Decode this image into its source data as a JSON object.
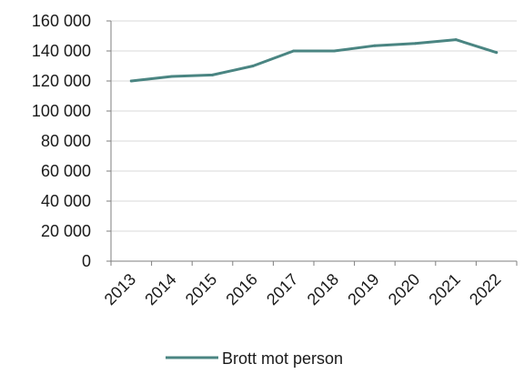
{
  "chart_data": {
    "type": "line",
    "title": "",
    "xlabel": "",
    "ylabel": "",
    "categories": [
      "2013",
      "2014",
      "2015",
      "2016",
      "2017",
      "2018",
      "2019",
      "2020",
      "2021",
      "2022"
    ],
    "series": [
      {
        "name": "Brott mot person",
        "values": [
          120000,
          123000,
          124000,
          130000,
          140000,
          140000,
          143500,
          145000,
          147500,
          139000
        ],
        "color": "#4a8582"
      }
    ],
    "ylim": [
      0,
      160000
    ],
    "y_ticks": [
      0,
      20000,
      40000,
      60000,
      80000,
      100000,
      120000,
      140000,
      160000
    ],
    "y_tick_labels": [
      "0",
      "20 000",
      "40 000",
      "60 000",
      "80 000",
      "100 000",
      "120 000",
      "140 000",
      "160 000"
    ],
    "grid": true,
    "legend_position": "bottom"
  },
  "colors": {
    "series_line": "#4a8582",
    "grid": "#d9d9d9",
    "axis": "#7f7f7f"
  }
}
